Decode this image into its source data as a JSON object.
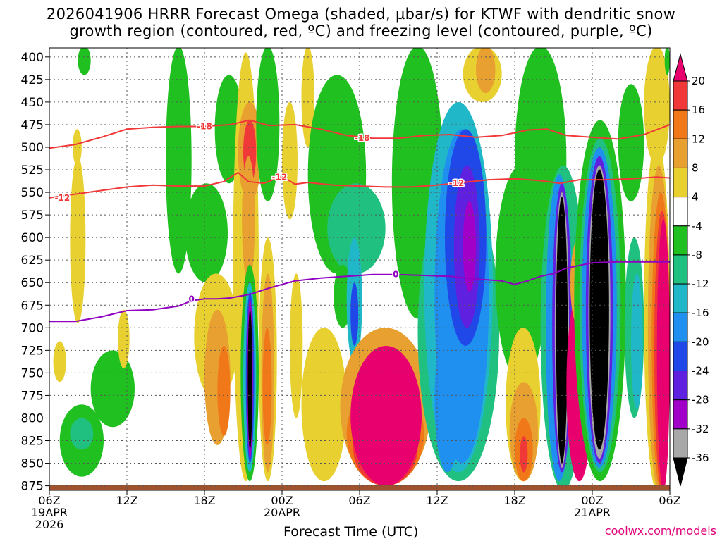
{
  "chart_data": {
    "type": "heatmap",
    "title_line1": "2026041906 HRRR Forecast Omega (shaded, µbar/s) for KTWF with dendritic snow",
    "title_line2": "growth region (contoured, red, ºC) and freezing level (contoured, purple, ºC)",
    "xlabel": "Forecast Time (UTC)",
    "credit": "coolwx.com/models",
    "y_axis": {
      "unit": "hPa",
      "reversed": true,
      "range": [
        390,
        880
      ],
      "ticks": [
        400,
        425,
        450,
        475,
        500,
        525,
        550,
        575,
        600,
        625,
        650,
        675,
        700,
        725,
        750,
        775,
        800,
        825,
        850,
        875
      ]
    },
    "x_axis": {
      "range_hours": [
        0,
        48
      ],
      "ticks": [
        {
          "hour": 0,
          "label": "06Z",
          "sub": "19APR",
          "sub2": "2026"
        },
        {
          "hour": 6,
          "label": "12Z",
          "sub": "",
          "sub2": ""
        },
        {
          "hour": 12,
          "label": "18Z",
          "sub": "",
          "sub2": ""
        },
        {
          "hour": 18,
          "label": "00Z",
          "sub": "20APR",
          "sub2": ""
        },
        {
          "hour": 24,
          "label": "06Z",
          "sub": "",
          "sub2": ""
        },
        {
          "hour": 30,
          "label": "12Z",
          "sub": "",
          "sub2": ""
        },
        {
          "hour": 36,
          "label": "18Z",
          "sub": "",
          "sub2": ""
        },
        {
          "hour": 42,
          "label": "00Z",
          "sub": "21APR",
          "sub2": ""
        },
        {
          "hour": 48,
          "label": "06Z",
          "sub": "",
          "sub2": ""
        }
      ]
    },
    "grid": true,
    "colorbar": {
      "labels": [
        "20",
        "16",
        "12",
        "8",
        "4",
        "-4",
        "-8",
        "-12",
        "-16",
        "-20",
        "-24",
        "-28",
        "-32",
        "-36"
      ],
      "bins": [
        {
          "range": "> 20",
          "color": "#e8006e"
        },
        {
          "range": "16 to 20",
          "color": "#f03838"
        },
        {
          "range": "12 to 16",
          "color": "#f07818"
        },
        {
          "range": "8 to 12",
          "color": "#e8a030"
        },
        {
          "range": "4 to 8",
          "color": "#e8d030"
        },
        {
          "range": "-4 to 4",
          "color": "#ffffff"
        },
        {
          "range": "-8 to -4",
          "color": "#20c020"
        },
        {
          "range": "-12 to -8",
          "color": "#20c080"
        },
        {
          "range": "-16 to -12",
          "color": "#20b8c8"
        },
        {
          "range": "-20 to -16",
          "color": "#2090f0"
        },
        {
          "range": "-24 to -20",
          "color": "#2048e8"
        },
        {
          "range": "-28 to -24",
          "color": "#6020e0"
        },
        {
          "range": "-32 to -28",
          "color": "#a000c8"
        },
        {
          "range": "-36 to -32",
          "color": "#a8a8a8"
        },
        {
          "range": "< -36",
          "color": "#000000"
        }
      ]
    },
    "shading_blobs": [
      {
        "t0": 0.8,
        "t1": 4.2,
        "p0": 785,
        "p1": 865,
        "color": "#20c020"
      },
      {
        "t0": 1.6,
        "t1": 3.4,
        "p0": 800,
        "p1": 835,
        "color": "#20c080"
      },
      {
        "t0": 3.2,
        "t1": 6.6,
        "p0": 725,
        "p1": 810,
        "color": "#20c020"
      },
      {
        "t0": 0.3,
        "t1": 1.3,
        "p0": 715,
        "p1": 760,
        "color": "#e8d030"
      },
      {
        "t0": 1.6,
        "t1": 2.8,
        "p0": 510,
        "p1": 695,
        "color": "#e8d030"
      },
      {
        "t0": 1.8,
        "t1": 2.5,
        "p0": 480,
        "p1": 520,
        "color": "#e8d030"
      },
      {
        "t0": 5.3,
        "t1": 6.2,
        "p0": 680,
        "p1": 745,
        "color": "#e8d030"
      },
      {
        "t0": 2.2,
        "t1": 3.2,
        "p0": 388,
        "p1": 420,
        "color": "#20c020"
      },
      {
        "t0": 9.0,
        "t1": 11.0,
        "p0": 388,
        "p1": 640,
        "color": "#20c020"
      },
      {
        "t0": 10.5,
        "t1": 13.8,
        "p0": 540,
        "p1": 650,
        "color": "#20c020"
      },
      {
        "t0": 12.8,
        "t1": 15.0,
        "p0": 420,
        "p1": 540,
        "color": "#20c020"
      },
      {
        "t0": 11.2,
        "t1": 14.6,
        "p0": 640,
        "p1": 780,
        "color": "#e8d030"
      },
      {
        "t0": 12.0,
        "t1": 14.0,
        "p0": 680,
        "p1": 830,
        "color": "#e8a030"
      },
      {
        "t0": 13.0,
        "t1": 14.0,
        "p0": 720,
        "p1": 820,
        "color": "#f07818"
      },
      {
        "t0": 14.2,
        "t1": 16.2,
        "p0": 395,
        "p1": 870,
        "color": "#e8d030"
      },
      {
        "t0": 14.6,
        "t1": 16.4,
        "p0": 450,
        "p1": 560,
        "color": "#e8a030"
      },
      {
        "t0": 15.0,
        "t1": 16.0,
        "p0": 470,
        "p1": 540,
        "color": "#f03838"
      },
      {
        "t0": 14.9,
        "t1": 15.9,
        "p0": 510,
        "p1": 650,
        "color": "#e8a030"
      },
      {
        "t0": 14.8,
        "t1": 16.2,
        "p0": 630,
        "p1": 870,
        "color": "#20c020"
      },
      {
        "t0": 15.0,
        "t1": 16.0,
        "p0": 650,
        "p1": 860,
        "color": "#20b8c8"
      },
      {
        "t0": 15.2,
        "t1": 15.85,
        "p0": 660,
        "p1": 850,
        "color": "#2048e8"
      },
      {
        "t0": 15.3,
        "t1": 15.75,
        "p0": 668,
        "p1": 845,
        "color": "#a000c8"
      },
      {
        "t0": 15.35,
        "t1": 15.7,
        "p0": 680,
        "p1": 835,
        "color": "#000000"
      },
      {
        "t0": 16.2,
        "t1": 17.6,
        "p0": 600,
        "p1": 870,
        "color": "#e8d030"
      },
      {
        "t0": 16.4,
        "t1": 17.4,
        "p0": 640,
        "p1": 860,
        "color": "#e8a030"
      },
      {
        "t0": 16.5,
        "t1": 17.2,
        "p0": 700,
        "p1": 830,
        "color": "#f07818"
      },
      {
        "t0": 16.0,
        "t1": 17.8,
        "p0": 388,
        "p1": 560,
        "color": "#20c020"
      },
      {
        "t0": 18.0,
        "t1": 19.2,
        "p0": 450,
        "p1": 580,
        "color": "#e8d030"
      },
      {
        "t0": 18.6,
        "t1": 19.6,
        "p0": 640,
        "p1": 800,
        "color": "#e8d030"
      },
      {
        "t0": 19.5,
        "t1": 20.5,
        "p0": 388,
        "p1": 500,
        "color": "#e8d030"
      },
      {
        "t0": 20.0,
        "t1": 24.5,
        "p0": 420,
        "p1": 640,
        "color": "#20c020"
      },
      {
        "t0": 21.5,
        "t1": 26.0,
        "p0": 540,
        "p1": 640,
        "color": "#20c080"
      },
      {
        "t0": 19.5,
        "t1": 23.0,
        "p0": 700,
        "p1": 870,
        "color": "#e8d030"
      },
      {
        "t0": 22.0,
        "t1": 23.4,
        "p0": 630,
        "p1": 700,
        "color": "#20c020"
      },
      {
        "t0": 23.0,
        "t1": 24.2,
        "p0": 600,
        "p1": 740,
        "color": "#20b8c8"
      },
      {
        "t0": 23.3,
        "t1": 23.9,
        "p0": 650,
        "p1": 720,
        "color": "#2048e8"
      },
      {
        "t0": 22.5,
        "t1": 29.5,
        "p0": 700,
        "p1": 875,
        "color": "#e8a030"
      },
      {
        "t0": 23.0,
        "t1": 29.0,
        "p0": 760,
        "p1": 875,
        "color": "#f07818"
      },
      {
        "t0": 23.5,
        "t1": 28.5,
        "p0": 790,
        "p1": 875,
        "color": "#f03838"
      },
      {
        "t0": 23.3,
        "t1": 28.8,
        "p0": 720,
        "p1": 875,
        "color": "#e8006e"
      },
      {
        "t0": 26.5,
        "t1": 30.5,
        "p0": 388,
        "p1": 690,
        "color": "#20c020"
      },
      {
        "t0": 28.5,
        "t1": 34.8,
        "p0": 540,
        "p1": 870,
        "color": "#20c080"
      },
      {
        "t0": 29.0,
        "t1": 34.3,
        "p0": 450,
        "p1": 860,
        "color": "#20b8c8"
      },
      {
        "t0": 29.8,
        "t1": 34.0,
        "p0": 480,
        "p1": 850,
        "color": "#2090f0"
      },
      {
        "t0": 30.6,
        "t1": 33.8,
        "p0": 480,
        "p1": 720,
        "color": "#2048e8"
      },
      {
        "t0": 31.3,
        "t1": 33.3,
        "p0": 520,
        "p1": 700,
        "color": "#6020e0"
      },
      {
        "t0": 32.0,
        "t1": 33.0,
        "p0": 560,
        "p1": 660,
        "color": "#a000c8"
      },
      {
        "t0": 29.8,
        "t1": 31.8,
        "p0": 700,
        "p1": 860,
        "color": "#2090f0"
      },
      {
        "t0": 32.0,
        "t1": 35.0,
        "p0": 388,
        "p1": 450,
        "color": "#e8d030"
      },
      {
        "t0": 33.0,
        "t1": 34.5,
        "p0": 388,
        "p1": 440,
        "color": "#e8a030"
      },
      {
        "t0": 34.5,
        "t1": 38.5,
        "p0": 520,
        "p1": 760,
        "color": "#20c020"
      },
      {
        "t0": 35.3,
        "t1": 38.0,
        "p0": 700,
        "p1": 870,
        "color": "#e8d030"
      },
      {
        "t0": 35.6,
        "t1": 37.8,
        "p0": 760,
        "p1": 870,
        "color": "#e8a030"
      },
      {
        "t0": 36.0,
        "t1": 37.4,
        "p0": 800,
        "p1": 870,
        "color": "#f07818"
      },
      {
        "t0": 36.4,
        "t1": 37.0,
        "p0": 820,
        "p1": 860,
        "color": "#f03838"
      },
      {
        "t0": 36.0,
        "t1": 40.0,
        "p0": 388,
        "p1": 640,
        "color": "#20c020"
      },
      {
        "t0": 38.0,
        "t1": 41.5,
        "p0": 520,
        "p1": 880,
        "color": "#20c080"
      },
      {
        "t0": 38.4,
        "t1": 40.5,
        "p0": 530,
        "p1": 870,
        "color": "#2090f0"
      },
      {
        "t0": 38.9,
        "t1": 40.4,
        "p0": 540,
        "p1": 860,
        "color": "#6020e0"
      },
      {
        "t0": 39.1,
        "t1": 40.2,
        "p0": 550,
        "p1": 855,
        "color": "#a8a8a8"
      },
      {
        "t0": 39.2,
        "t1": 40.1,
        "p0": 555,
        "p1": 850,
        "color": "#000000"
      },
      {
        "t0": 40.0,
        "t1": 42.0,
        "p0": 660,
        "p1": 870,
        "color": "#e8006e"
      },
      {
        "t0": 40.3,
        "t1": 41.7,
        "p0": 600,
        "p1": 700,
        "color": "#e8a030"
      },
      {
        "t0": 40.6,
        "t1": 44.6,
        "p0": 470,
        "p1": 870,
        "color": "#20c020"
      },
      {
        "t0": 41.0,
        "t1": 44.2,
        "p0": 490,
        "p1": 860,
        "color": "#20c080"
      },
      {
        "t0": 41.2,
        "t1": 43.9,
        "p0": 500,
        "p1": 855,
        "color": "#2090f0"
      },
      {
        "t0": 41.5,
        "t1": 43.6,
        "p0": 510,
        "p1": 850,
        "color": "#6020e0"
      },
      {
        "t0": 41.7,
        "t1": 43.4,
        "p0": 520,
        "p1": 845,
        "color": "#a8a8a8"
      },
      {
        "t0": 41.8,
        "t1": 43.3,
        "p0": 525,
        "p1": 835,
        "color": "#000000"
      },
      {
        "t0": 44.0,
        "t1": 46.0,
        "p0": 430,
        "p1": 560,
        "color": "#20c020"
      },
      {
        "t0": 44.5,
        "t1": 46.0,
        "p0": 600,
        "p1": 800,
        "color": "#20c080"
      },
      {
        "t0": 45.0,
        "t1": 45.9,
        "p0": 640,
        "p1": 790,
        "color": "#20b8c8"
      },
      {
        "t0": 46.0,
        "t1": 48.0,
        "p0": 388,
        "p1": 520,
        "color": "#e8d030"
      },
      {
        "t0": 46.0,
        "t1": 48.0,
        "p0": 490,
        "p1": 880,
        "color": "#e8d030"
      },
      {
        "t0": 46.3,
        "t1": 48.0,
        "p0": 520,
        "p1": 880,
        "color": "#e8a030"
      },
      {
        "t0": 46.6,
        "t1": 48.0,
        "p0": 550,
        "p1": 880,
        "color": "#f07818"
      },
      {
        "t0": 46.8,
        "t1": 48.0,
        "p0": 570,
        "p1": 880,
        "color": "#f03838"
      },
      {
        "t0": 47.0,
        "t1": 48.0,
        "p0": 580,
        "p1": 880,
        "color": "#e8006e"
      },
      {
        "t0": 47.6,
        "t1": 48.0,
        "p0": 388,
        "p1": 420,
        "color": "#20c020"
      }
    ],
    "contours": [
      {
        "label": "-18",
        "color": "#f03838",
        "label_at": [
          12.0,
          477
        ],
        "label2_at": [
          24.2,
          490
        ],
        "points": [
          [
            0,
            501
          ],
          [
            2,
            497
          ],
          [
            4,
            489
          ],
          [
            6,
            480
          ],
          [
            8,
            478
          ],
          [
            10,
            477
          ],
          [
            12,
            477
          ],
          [
            14,
            475
          ],
          [
            15.5,
            470
          ],
          [
            17,
            476
          ],
          [
            19,
            475
          ],
          [
            21,
            480
          ],
          [
            23,
            487
          ],
          [
            25,
            490
          ],
          [
            27,
            490
          ],
          [
            29,
            487
          ],
          [
            31,
            486
          ],
          [
            33,
            489
          ],
          [
            35,
            487
          ],
          [
            37,
            481
          ],
          [
            38.5,
            480
          ],
          [
            40,
            487
          ],
          [
            42,
            489
          ],
          [
            44,
            491
          ],
          [
            46,
            486
          ],
          [
            48,
            475
          ]
        ]
      },
      {
        "label": "-12",
        "color": "#f03838",
        "label_at": [
          1.0,
          556
        ],
        "label2_at": [
          17.8,
          533
        ],
        "label3_at": [
          31.5,
          540
        ],
        "points": [
          [
            0,
            556
          ],
          [
            2,
            552
          ],
          [
            4,
            548
          ],
          [
            6,
            544
          ],
          [
            8,
            542
          ],
          [
            10,
            543
          ],
          [
            12,
            543
          ],
          [
            13.5,
            538
          ],
          [
            14.6,
            528
          ],
          [
            15.4,
            538
          ],
          [
            16.6,
            540
          ],
          [
            18,
            532
          ],
          [
            19,
            541
          ],
          [
            20,
            539
          ],
          [
            22,
            542
          ],
          [
            24,
            543
          ],
          [
            26,
            544
          ],
          [
            28,
            544
          ],
          [
            30,
            542
          ],
          [
            32,
            539
          ],
          [
            34,
            536
          ],
          [
            36,
            535
          ],
          [
            38,
            537
          ],
          [
            39.5,
            540
          ],
          [
            41,
            536
          ],
          [
            43,
            536
          ],
          [
            45,
            535
          ],
          [
            47,
            533
          ],
          [
            48,
            534
          ]
        ]
      },
      {
        "label": "0",
        "color": "#9000c0",
        "label_at": [
          11.0,
          668
        ],
        "label2_at": [
          26.8,
          641
        ],
        "points": [
          [
            0,
            693
          ],
          [
            2,
            693
          ],
          [
            4,
            688
          ],
          [
            6,
            681
          ],
          [
            8,
            680
          ],
          [
            10,
            676
          ],
          [
            11,
            670
          ],
          [
            12,
            668
          ],
          [
            13,
            668
          ],
          [
            14,
            667
          ],
          [
            15.5,
            663
          ],
          [
            17,
            656
          ],
          [
            19,
            648
          ],
          [
            21,
            645
          ],
          [
            23,
            643
          ],
          [
            25,
            641
          ],
          [
            27,
            641
          ],
          [
            29,
            642
          ],
          [
            31,
            643
          ],
          [
            33,
            646
          ],
          [
            35,
            648
          ],
          [
            36,
            652
          ],
          [
            37,
            648
          ],
          [
            38,
            643
          ],
          [
            39,
            640
          ],
          [
            40,
            634
          ],
          [
            42,
            628
          ],
          [
            44,
            627
          ],
          [
            46,
            627
          ],
          [
            48,
            627
          ]
        ]
      }
    ]
  }
}
